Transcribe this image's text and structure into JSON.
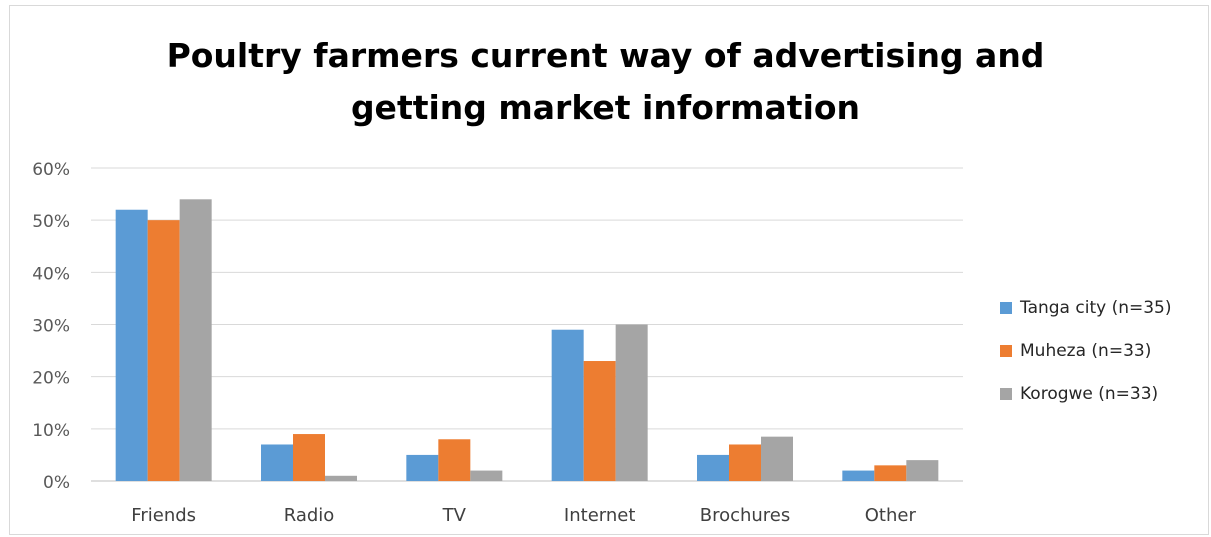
{
  "chart_data": {
    "type": "bar",
    "title": "Poultry farmers current way of advertising and getting market information",
    "title_lines": [
      "Poultry farmers current way of advertising and",
      "getting market information"
    ],
    "categories": [
      "Friends",
      "Radio",
      "TV",
      "Internet",
      "Brochures",
      "Other"
    ],
    "series": [
      {
        "name": "Tanga city (n=35)",
        "color": "#5b9bd5",
        "values": [
          0.52,
          0.07,
          0.05,
          0.29,
          0.05,
          0.02
        ]
      },
      {
        "name": "Muheza (n=33)",
        "color": "#ed7d31",
        "values": [
          0.5,
          0.09,
          0.08,
          0.23,
          0.07,
          0.03
        ]
      },
      {
        "name": "Korogwe (n=33)",
        "color": "#a5a5a5",
        "values": [
          0.54,
          0.01,
          0.02,
          0.3,
          0.085,
          0.04
        ]
      }
    ],
    "yticks": [
      "0%",
      "10%",
      "20%",
      "30%",
      "40%",
      "50%",
      "60%"
    ],
    "ylim": [
      0,
      0.6
    ],
    "grid": true,
    "legend_position": "right"
  }
}
